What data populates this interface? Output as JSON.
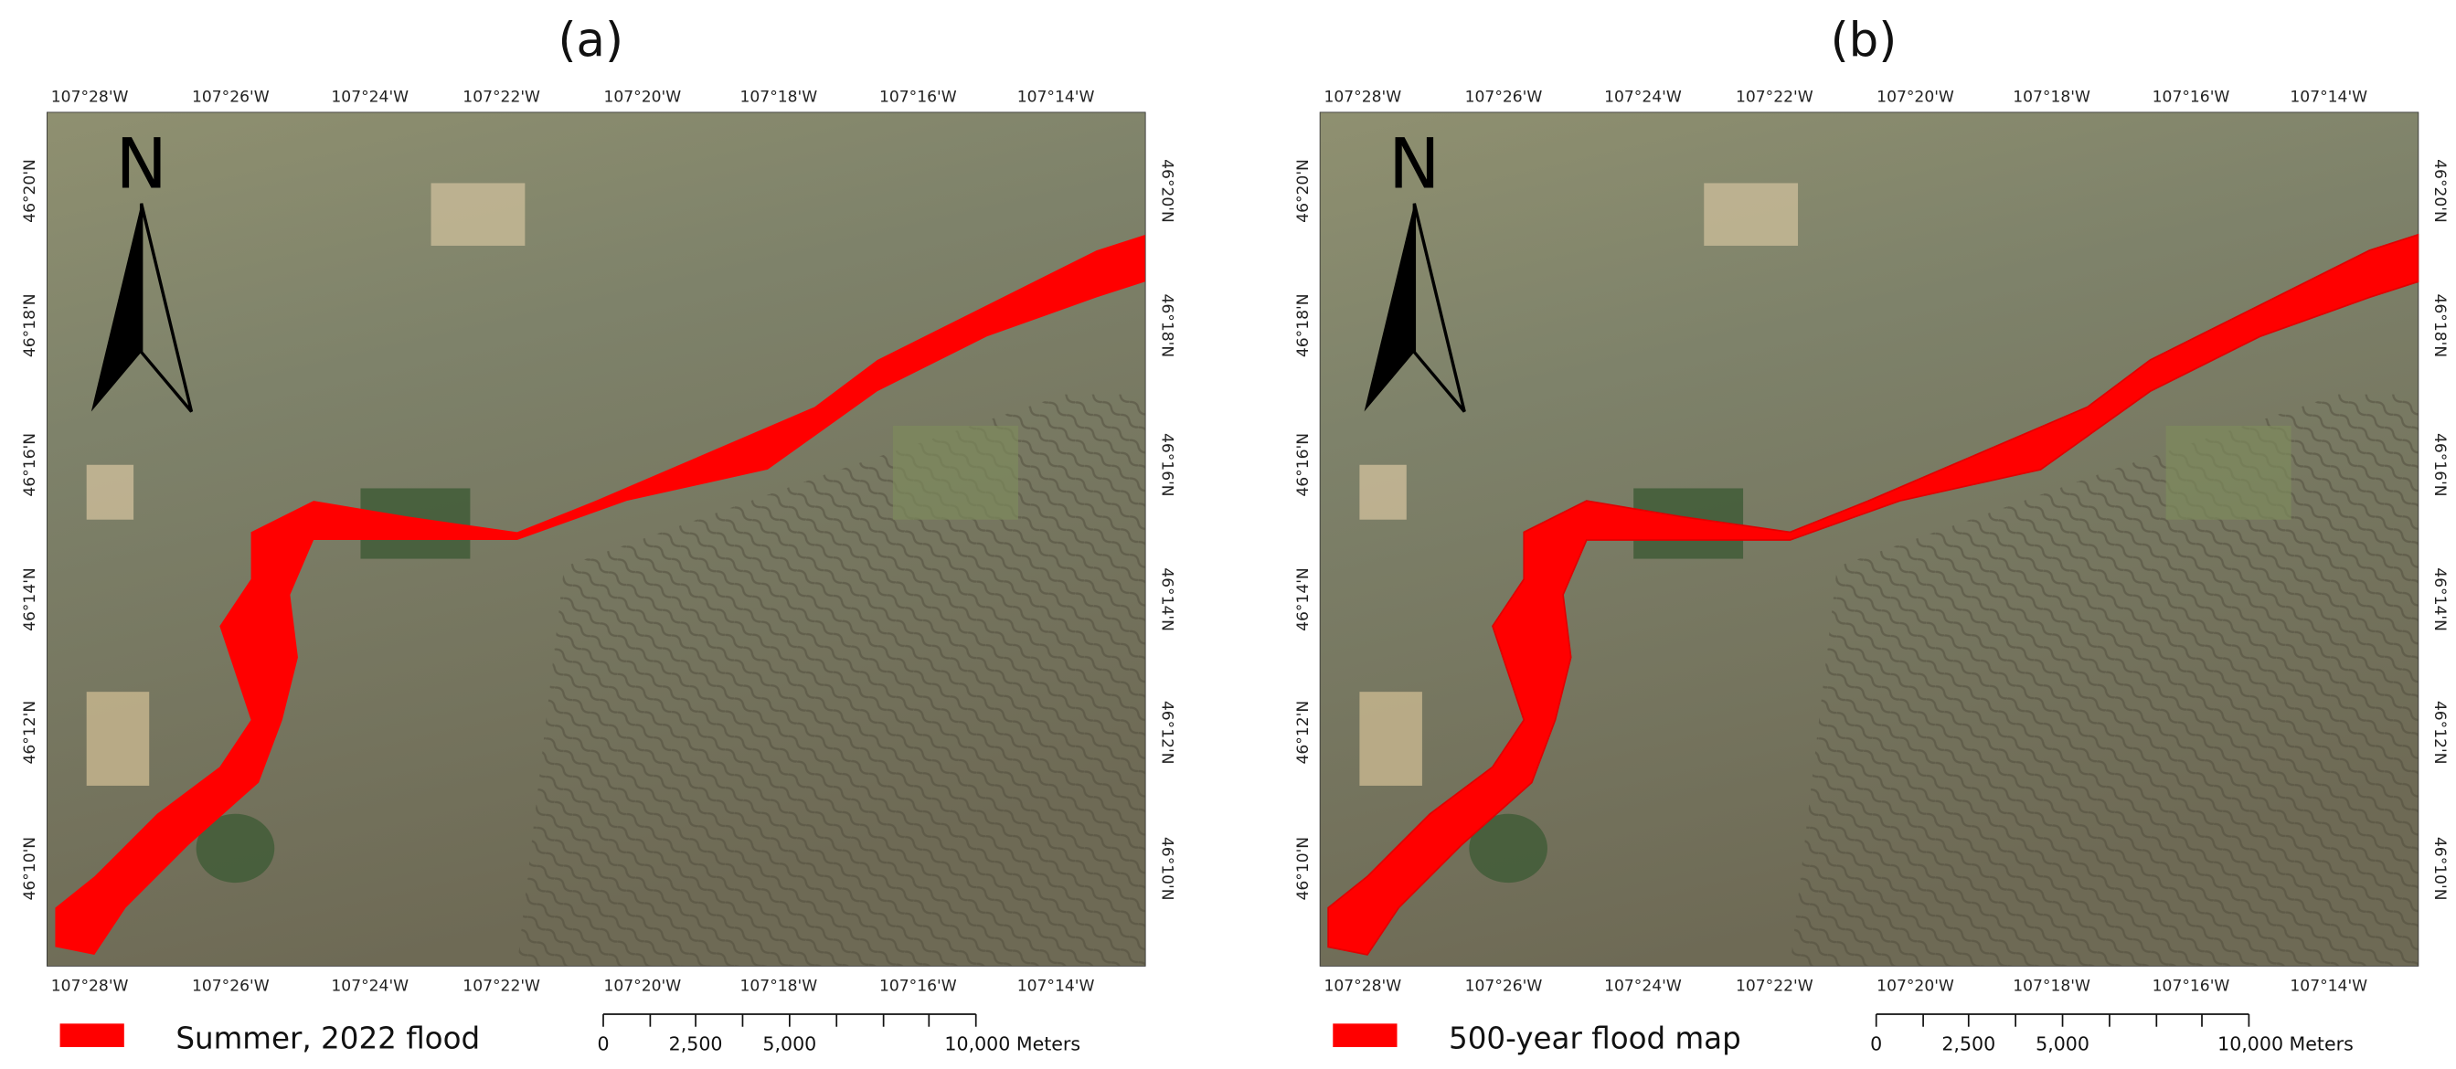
{
  "panels": [
    {
      "label": "(a)",
      "legend": "Summer, 2022 flood",
      "longitudes": [
        "107°28'W",
        "107°26'W",
        "107°24'W",
        "107°22'W",
        "107°20'W",
        "107°18'W",
        "107°16'W",
        "107°14'W"
      ],
      "latitudes": [
        "46°20'N",
        "46°18'N",
        "46°16'N",
        "46°14'N",
        "46°12'N",
        "46°10'N"
      ],
      "north": "N",
      "scale_labels": [
        "0",
        "2,500",
        "5,000",
        "10,000 Meters"
      ]
    },
    {
      "label": "(b)",
      "legend": "500-year flood map",
      "longitudes": [
        "107°28'W",
        "107°26'W",
        "107°24'W",
        "107°22'W",
        "107°20'W",
        "107°18'W",
        "107°16'W",
        "107°14'W"
      ],
      "latitudes": [
        "46°20'N",
        "46°18'N",
        "46°16'N",
        "46°14'N",
        "46°12'N",
        "46°10'N"
      ],
      "north": "N",
      "scale_labels": [
        "0",
        "2,500",
        "5,000",
        "10,000 Meters"
      ]
    }
  ]
}
